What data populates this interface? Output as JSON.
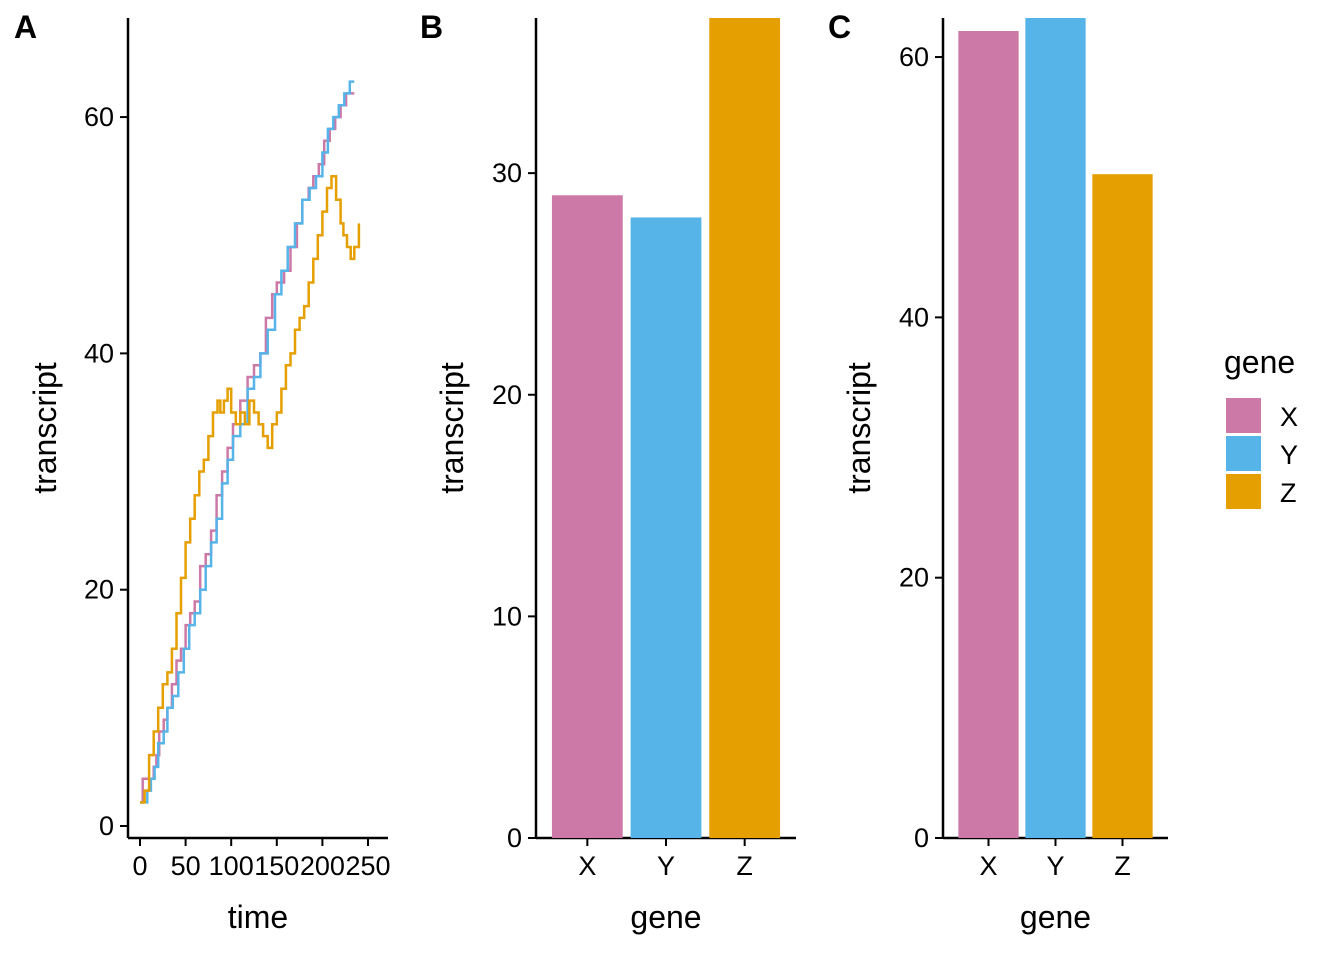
{
  "chart_data": [
    {
      "panel": "A",
      "type": "line",
      "xlabel": "time",
      "ylabel": "transcript",
      "xlim": [
        0,
        250
      ],
      "ylim": [
        0,
        65
      ],
      "xticks": [
        "0",
        "50",
        "100",
        "150",
        "200",
        "250"
      ],
      "yticks": [
        "0",
        "20",
        "40",
        "60"
      ],
      "grid": false,
      "series": [
        {
          "name": "X",
          "color": "#CC79A7",
          "points": [
            [
              0,
              2
            ],
            [
              3,
              4
            ],
            [
              12,
              4
            ],
            [
              15,
              5
            ],
            [
              18,
              6
            ],
            [
              21,
              8
            ],
            [
              26,
              9
            ],
            [
              30,
              10
            ],
            [
              35,
              12
            ],
            [
              40,
              14
            ],
            [
              45,
              15
            ],
            [
              50,
              17
            ],
            [
              55,
              18
            ],
            [
              60,
              19
            ],
            [
              66,
              22
            ],
            [
              72,
              23
            ],
            [
              78,
              25
            ],
            [
              84,
              28
            ],
            [
              90,
              30
            ],
            [
              96,
              32
            ],
            [
              102,
              34
            ],
            [
              110,
              36
            ],
            [
              118,
              38
            ],
            [
              125,
              39
            ],
            [
              132,
              40
            ],
            [
              138,
              43
            ],
            [
              145,
              45
            ],
            [
              150,
              46
            ],
            [
              158,
              47
            ],
            [
              165,
              49
            ],
            [
              172,
              51
            ],
            [
              178,
              53
            ],
            [
              185,
              54
            ],
            [
              190,
              55
            ],
            [
              196,
              56
            ],
            [
              202,
              58
            ],
            [
              208,
              59
            ],
            [
              214,
              60
            ],
            [
              220,
              61
            ],
            [
              226,
              62
            ],
            [
              235,
              62
            ]
          ]
        },
        {
          "name": "Y",
          "color": "#56B4E9",
          "points": [
            [
              0,
              2
            ],
            [
              5,
              2
            ],
            [
              8,
              3
            ],
            [
              12,
              4
            ],
            [
              16,
              5
            ],
            [
              20,
              7
            ],
            [
              26,
              8
            ],
            [
              30,
              10
            ],
            [
              36,
              11
            ],
            [
              42,
              13
            ],
            [
              48,
              15
            ],
            [
              54,
              17
            ],
            [
              60,
              18
            ],
            [
              66,
              20
            ],
            [
              72,
              22
            ],
            [
              78,
              24
            ],
            [
              84,
              26
            ],
            [
              90,
              29
            ],
            [
              96,
              31
            ],
            [
              102,
              33
            ],
            [
              110,
              34
            ],
            [
              118,
              37
            ],
            [
              125,
              38
            ],
            [
              132,
              40
            ],
            [
              140,
              42
            ],
            [
              148,
              45
            ],
            [
              155,
              47
            ],
            [
              162,
              49
            ],
            [
              170,
              51
            ],
            [
              178,
              53
            ],
            [
              186,
              54
            ],
            [
              193,
              55
            ],
            [
              200,
              57
            ],
            [
              206,
              59
            ],
            [
              212,
              60
            ],
            [
              218,
              61
            ],
            [
              224,
              62
            ],
            [
              230,
              63
            ],
            [
              235,
              63
            ]
          ]
        },
        {
          "name": "Z",
          "color": "#E69F00",
          "points": [
            [
              0,
              2
            ],
            [
              5,
              3
            ],
            [
              10,
              6
            ],
            [
              15,
              8
            ],
            [
              20,
              10
            ],
            [
              25,
              12
            ],
            [
              30,
              13
            ],
            [
              35,
              15
            ],
            [
              40,
              18
            ],
            [
              45,
              21
            ],
            [
              50,
              24
            ],
            [
              55,
              26
            ],
            [
              60,
              28
            ],
            [
              65,
              30
            ],
            [
              70,
              31
            ],
            [
              75,
              33
            ],
            [
              80,
              35
            ],
            [
              85,
              36
            ],
            [
              88,
              35
            ],
            [
              92,
              36
            ],
            [
              96,
              37
            ],
            [
              100,
              35
            ],
            [
              105,
              34
            ],
            [
              110,
              35
            ],
            [
              115,
              34
            ],
            [
              120,
              36
            ],
            [
              125,
              35
            ],
            [
              130,
              34
            ],
            [
              135,
              33
            ],
            [
              140,
              32
            ],
            [
              145,
              34
            ],
            [
              150,
              35
            ],
            [
              155,
              37
            ],
            [
              160,
              39
            ],
            [
              165,
              40
            ],
            [
              170,
              42
            ],
            [
              175,
              43
            ],
            [
              180,
              44
            ],
            [
              185,
              46
            ],
            [
              190,
              48
            ],
            [
              195,
              50
            ],
            [
              200,
              52
            ],
            [
              205,
              54
            ],
            [
              210,
              55
            ],
            [
              215,
              53
            ],
            [
              220,
              51
            ],
            [
              223,
              50
            ],
            [
              227,
              49
            ],
            [
              231,
              48
            ],
            [
              235,
              49
            ],
            [
              240,
              51
            ]
          ]
        }
      ]
    },
    {
      "panel": "B",
      "type": "bar",
      "xlabel": "gene",
      "ylabel": "transcript",
      "categories": [
        "X",
        "Y",
        "Z"
      ],
      "values": [
        29,
        28,
        37
      ],
      "colors": [
        "#CC79A7",
        "#56B4E9",
        "#E69F00"
      ],
      "ylim": [
        0,
        37
      ],
      "yticks": [
        "0",
        "10",
        "20",
        "30"
      ],
      "grid": false
    },
    {
      "panel": "C",
      "type": "bar",
      "xlabel": "gene",
      "ylabel": "transcript",
      "categories": [
        "X",
        "Y",
        "Z"
      ],
      "values": [
        62,
        63,
        51
      ],
      "colors": [
        "#CC79A7",
        "#56B4E9",
        "#E69F00"
      ],
      "ylim": [
        0,
        63
      ],
      "yticks": [
        "0",
        "20",
        "40",
        "60"
      ],
      "grid": false
    }
  ],
  "legend": {
    "title": "gene",
    "placement": "right",
    "entries": [
      {
        "label": "X",
        "color": "#CC79A7"
      },
      {
        "label": "Y",
        "color": "#56B4E9"
      },
      {
        "label": "Z",
        "color": "#E69F00"
      }
    ]
  }
}
